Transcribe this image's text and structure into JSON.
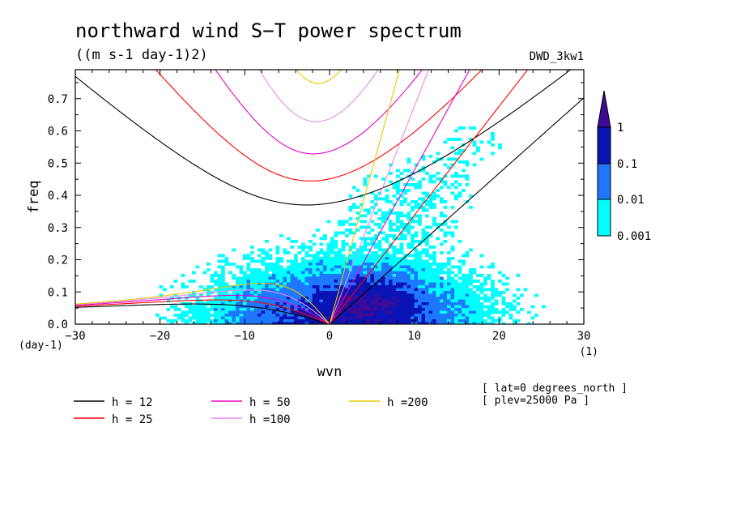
{
  "chart_data": {
    "type": "heatmap",
    "title": "northward wind S−T power spectrum",
    "units": "((m s-1 day-1)2)",
    "dataset": "DWD_3kw1",
    "xlabel": "wvn",
    "ylabel": "freq",
    "x_unit": "(1)",
    "y_unit": "(day-1)",
    "xlim": [
      -30,
      30
    ],
    "ylim": [
      0,
      0.79
    ],
    "x_ticks": [
      "−30",
      "−20",
      "−10",
      "0",
      "10",
      "20",
      "30"
    ],
    "y_ticks": [
      "0.0",
      "0.1",
      "0.2",
      "0.3",
      "0.4",
      "0.5",
      "0.6",
      "0.7"
    ],
    "colorbar": {
      "labels": [
        "1",
        "0.1",
        "0.01",
        "0.001"
      ],
      "levels": [
        0.001,
        0.01,
        0.1,
        1
      ],
      "colors": [
        "#00ffff",
        "#1e78ff",
        "#0a14b4",
        "#3c0a96"
      ]
    },
    "notes": [
      "[ lat=0 degrees_north ]",
      "[ plev=25000 Pa ]"
    ],
    "series": [
      {
        "name": "h = 12",
        "value": 12,
        "color": "#000000"
      },
      {
        "name": "h = 25",
        "value": 25,
        "color": "#ff0000"
      },
      {
        "name": "h = 50",
        "value": 50,
        "color": "#e600c8"
      },
      {
        "name": "h =100",
        "value": 100,
        "color": "#e68ce6"
      },
      {
        "name": "h =200",
        "value": 200,
        "color": "#e6c800"
      }
    ]
  }
}
